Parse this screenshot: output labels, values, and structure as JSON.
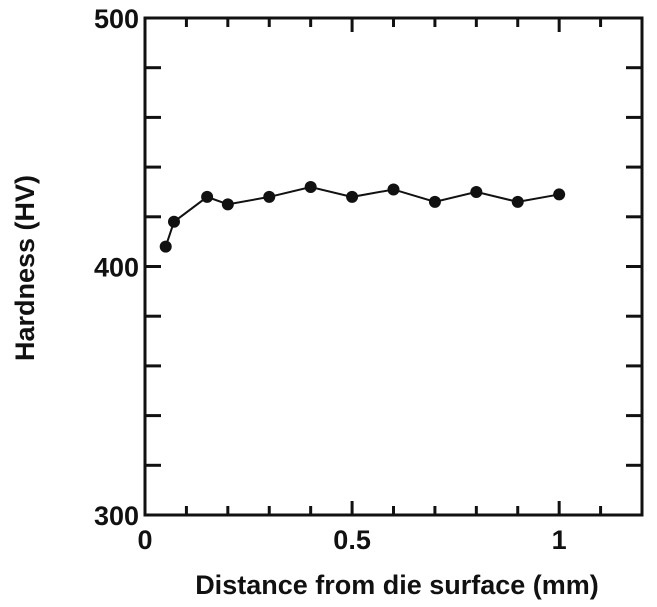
{
  "chart_data": {
    "type": "line",
    "title": "",
    "xlabel": "Distance from die surface (mm)",
    "ylabel": "Hardness (HV)",
    "xlim": [
      0,
      1.2
    ],
    "ylim": [
      300,
      500
    ],
    "x_ticks": [
      0,
      0.5,
      1
    ],
    "x_tick_labels": [
      "0",
      "0.5",
      "1"
    ],
    "x_minor_ticks": [
      0.1,
      0.2,
      0.3,
      0.4,
      0.6,
      0.7,
      0.8,
      0.9,
      1.1
    ],
    "y_ticks": [
      300,
      400,
      500
    ],
    "y_tick_labels": [
      "300",
      "400",
      "500"
    ],
    "y_minor_ticks": [
      320,
      340,
      360,
      380,
      420,
      440,
      460,
      480
    ],
    "grid": false,
    "legend": "none",
    "marker": "filled-circle",
    "colors": {
      "line": "#111111",
      "marker": "#111111",
      "axis": "#111111"
    },
    "series": [
      {
        "x": [
          0.05,
          0.07,
          0.15,
          0.2,
          0.3,
          0.4,
          0.5,
          0.6,
          0.7,
          0.8,
          0.9,
          1.0
        ],
        "values": [
          408,
          418,
          428,
          425,
          428,
          432,
          428,
          431,
          426,
          430,
          426,
          429
        ]
      }
    ]
  }
}
